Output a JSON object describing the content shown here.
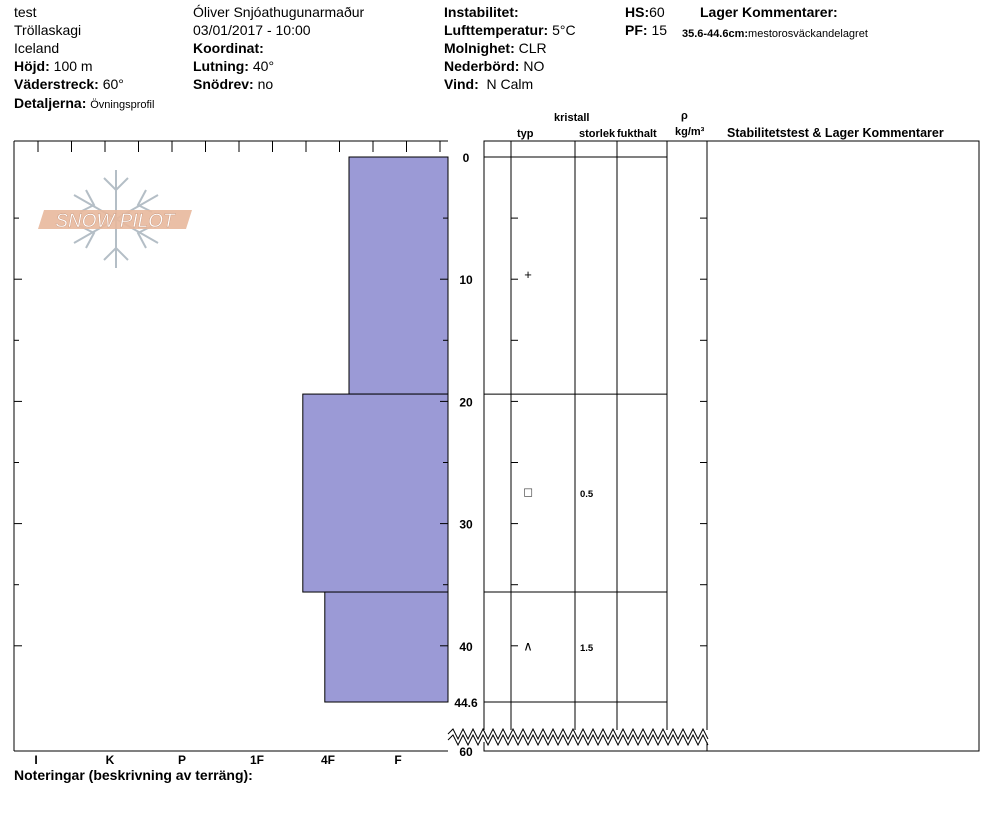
{
  "header": {
    "col1": {
      "title": "test",
      "location": "Tröllaskagi",
      "country": "Iceland",
      "elevation_label": "Höjd:",
      "elevation_value": "100 m",
      "aspect_label": "Väderstreck:",
      "aspect_value": "60°",
      "details_label": "Detaljerna:",
      "details_value": "Övningsprofil"
    },
    "col2": {
      "observer": "Óliver Snjóathugunarmaður",
      "datetime": "03/01/2017 - 10:00",
      "coord_label": "Koordinat:",
      "slope_label": "Lutning:",
      "slope_value": "40°",
      "drift_label": "Snödrev:",
      "drift_value": "no"
    },
    "col3": {
      "instability_label": "Instabilitet:",
      "airtemp_label": "Lufttemperatur:",
      "airtemp_value": "5°C",
      "sky_label": "Molnighet:",
      "sky_value": "CLR",
      "precip_label": "Nederbörd:",
      "precip_value": "NO",
      "wind_label": "Vind:",
      "wind_value": "N Calm"
    },
    "col4": {
      "hs_label": "HS:",
      "hs_value": "60",
      "pf_label": "PF:",
      "pf_value": "15",
      "layer_comments_label": "Lager Kommentarer:",
      "layer_comment_range": "35.6-44.6cm:",
      "layer_comment_text": "mestorosväckandelagret"
    }
  },
  "logo": {
    "text": "SNOW PILOT",
    "color": "#e8b89c"
  },
  "table_headers": {
    "crystal": "kristall",
    "type": "typ",
    "size": "storlek",
    "moisture": "fukthalt",
    "rho": "ρ",
    "density_unit": "kg/m³",
    "stability": "Stabilitetstest & Lager Kommentarer"
  },
  "notes_label": "Noteringar (beskrivning av terräng):",
  "chart_data": {
    "type": "bar",
    "title": "",
    "xlabel": "",
    "ylabel": "",
    "orientation": "horizontal",
    "x_categories": [
      "I",
      "K",
      "P",
      "1F",
      "4F",
      "F"
    ],
    "y_ticks": [
      0,
      10,
      20,
      30,
      40,
      44.6,
      60
    ],
    "ylim": [
      0,
      60
    ],
    "y_direction": "top-to-bottom",
    "axis_break": [
      44.6,
      60
    ],
    "fill_color": "#9b9ad6",
    "layers": [
      {
        "top": 0,
        "bottom": 19.4,
        "hardness": "F",
        "hardness_value": 0.9,
        "grain_type": "+",
        "grain_size": "",
        "moisture": "",
        "density": ""
      },
      {
        "top": 19.4,
        "bottom": 35.6,
        "hardness": "4F",
        "hardness_value": 1.32,
        "grain_type": "□",
        "grain_size": "0.5",
        "moisture": "",
        "density": ""
      },
      {
        "top": 35.6,
        "bottom": 44.6,
        "hardness": "4F",
        "hardness_value": 1.12,
        "grain_type": "∧",
        "grain_size": "1.5",
        "moisture": "",
        "density": ""
      }
    ]
  }
}
